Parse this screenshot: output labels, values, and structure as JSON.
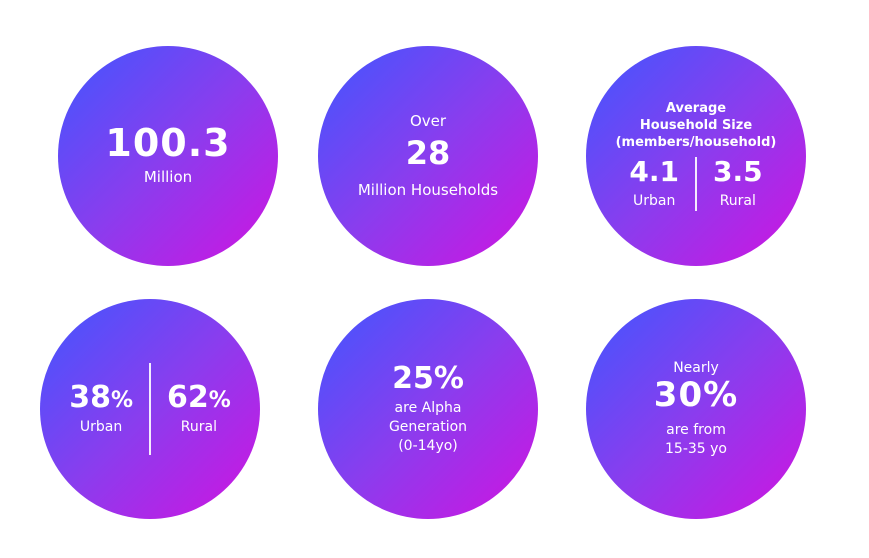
{
  "circles": {
    "population": {
      "value": "100.3",
      "unit": "Million"
    },
    "households": {
      "prefix": "Over",
      "value": "28",
      "unit": "Million Households"
    },
    "household_size": {
      "title_line1": "Average",
      "title_line2": "Household Size",
      "title_line3": "(members/household)",
      "urban_value": "4.1",
      "urban_label": "Urban",
      "rural_value": "3.5",
      "rural_label": "Rural"
    },
    "urban_rural": {
      "urban_value": "38",
      "urban_pct": "%",
      "urban_label": "Urban",
      "rural_value": "62",
      "rural_pct": "%",
      "rural_label": "Rural"
    },
    "alpha": {
      "value": "25%",
      "line1": "are Alpha",
      "line2": "Generation",
      "line3": "(0-14yo)"
    },
    "youth": {
      "prefix": "Nearly",
      "value": "30%",
      "line1": "are from",
      "line2": "15-35 yo"
    }
  }
}
